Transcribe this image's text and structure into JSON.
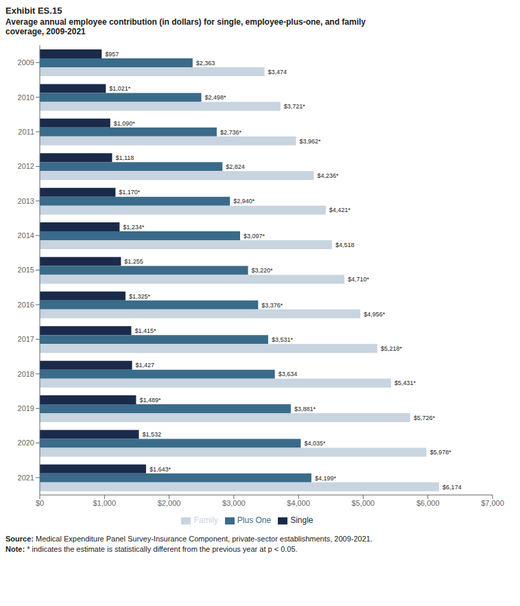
{
  "chart_data": {
    "type": "bar",
    "orientation": "horizontal",
    "title": "Exhibit ES.15",
    "subtitle": "Average annual employee contribution (in dollars) for single, employee-plus-one, and family\ncoverage, 2009-2021",
    "categories": [
      "2009",
      "2010",
      "2011",
      "2012",
      "2013",
      "2014",
      "2015",
      "2016",
      "2017",
      "2018",
      "2019",
      "2020",
      "2021"
    ],
    "series": [
      {
        "name": "Single",
        "color": "#1a2a4a",
        "values": [
          957,
          1021,
          1090,
          1118,
          1170,
          1234,
          1255,
          1325,
          1415,
          1427,
          1489,
          1532,
          1643
        ],
        "value_labels": [
          "$957",
          "$1,021*",
          "$1,090*",
          "$1,118",
          "$1,170*",
          "$1,234*",
          "$1,255",
          "$1,325*",
          "$1,415*",
          "$1,427",
          "$1,489*",
          "$1,532",
          "$1,643*"
        ]
      },
      {
        "name": "Plus One",
        "color": "#3a6b8a",
        "values": [
          2363,
          2498,
          2736,
          2824,
          2940,
          3097,
          3220,
          3376,
          3531,
          3634,
          3881,
          4035,
          4199
        ],
        "value_labels": [
          "$2,363",
          "$2,498*",
          "$2,736*",
          "$2,824",
          "$2,940*",
          "$3,097*",
          "$3,220*",
          "$3,376*",
          "$3,531*",
          "$3,634",
          "$3,881*",
          "$4,035*",
          "$4,199*"
        ]
      },
      {
        "name": "Family",
        "color": "#c8d4e0",
        "values": [
          3474,
          3721,
          3962,
          4236,
          4421,
          4518,
          4710,
          4956,
          5218,
          5431,
          5726,
          5978,
          6174
        ],
        "value_labels": [
          "$3,474",
          "$3,721*",
          "$3,962*",
          "$4,236*",
          "$4,421*",
          "$4,518",
          "$4,710*",
          "$4,956*",
          "$5,218*",
          "$5,431*",
          "$5,726*",
          "$5,978*",
          "$6,174"
        ]
      }
    ],
    "xlim": [
      0,
      7000
    ],
    "xticks": [
      {
        "value": 0,
        "label": "$0"
      },
      {
        "value": 1000,
        "label": "$1,000"
      },
      {
        "value": 2000,
        "label": "$2,000"
      },
      {
        "value": 3000,
        "label": "$3,000"
      },
      {
        "value": 4000,
        "label": "$4,000"
      },
      {
        "value": 5000,
        "label": "$5,000"
      },
      {
        "value": 6000,
        "label": "$6,000"
      },
      {
        "value": 7000,
        "label": "$7,000"
      }
    ],
    "data_labels": true,
    "grid": false,
    "legend": "bottom",
    "annotations": [
      "Source: Medical Expenditure Panel Survey-Insurance Component, private-sector establishments, 2009-2021.",
      "Note: * indicates the estimate is statistically different from the previous year at p < 0.05."
    ]
  }
}
